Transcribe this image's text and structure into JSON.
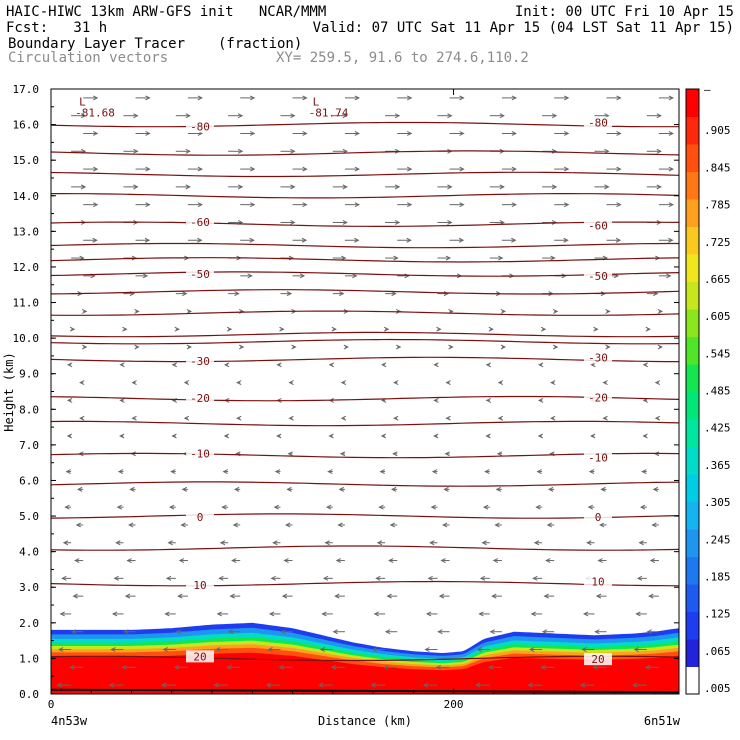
{
  "header": {
    "title": "HAIC-HIWC 13km ARW-GFS init   NCAR/MMM",
    "init": "Init: 00 UTC Fri 10 Apr 15",
    "fcst": "Fcst:   31 h",
    "valid": "Valid: 07 UTC Sat 11 Apr 15 (04 LST Sat 11 Apr 15)",
    "field1": "Boundary Layer Tracer",
    "field1_units": "(fraction)",
    "field2": "Circulation vectors",
    "xy": "XY= 259.5, 91.6 to 274.6,110.2"
  },
  "colors": {
    "contour": "#7a1010",
    "vector": "#666666",
    "tracer_scale": [
      "#ffffff",
      "#2323dc",
      "#1e3cf0",
      "#1e5af0",
      "#1e78f0",
      "#1e96f0",
      "#14b4f0",
      "#00cce6",
      "#00dcc8",
      "#00e6a0",
      "#00e678",
      "#14e650",
      "#50e628",
      "#8ce61e",
      "#c8e61e",
      "#f0e61e",
      "#fac81e",
      "#ffa01e",
      "#ff7814",
      "#ff500f",
      "#ff280a",
      "#ff0000"
    ]
  },
  "chart_data": {
    "type": "heatmap",
    "title": "Boundary Layer Tracer (fraction)",
    "xlabel": "Distance (km)",
    "ylabel": "Height (km)",
    "xlim": [
      0,
      312
    ],
    "ylim": [
      0,
      17
    ],
    "x_tick_labels": [
      "0",
      "200"
    ],
    "x_ticks": [
      0,
      200
    ],
    "x_end_labels": [
      "4n53w",
      "6n51w"
    ],
    "y_ticks": [
      0,
      1,
      2,
      3,
      4,
      5,
      6,
      7,
      8,
      9,
      10,
      11,
      12,
      13,
      14,
      15,
      16,
      17
    ],
    "y_tick_labels": [
      "0.0",
      "1.0",
      "2.0",
      "3.0",
      "4.0",
      "5.0",
      "6.0",
      "7.0",
      "8.0",
      "9.0",
      "10.0",
      "11.0",
      "12.0",
      "13.0",
      "14.0",
      "15.0",
      "16.0",
      "17.0"
    ],
    "colorbar_labels": [
      ".005",
      ".065",
      ".125",
      ".185",
      ".245",
      ".305",
      ".365",
      ".425",
      ".485",
      ".545",
      ".605",
      ".665",
      ".725",
      ".785",
      ".845",
      ".905",
      "–"
    ],
    "tracer_top_km": {
      "x": [
        0,
        20,
        40,
        60,
        80,
        100,
        120,
        135,
        150,
        165,
        180,
        195,
        205,
        215,
        230,
        250,
        270,
        290,
        300,
        312
      ],
      "z": [
        1.8,
        1.8,
        1.8,
        1.85,
        1.95,
        2.0,
        1.85,
        1.65,
        1.45,
        1.3,
        1.2,
        1.15,
        1.2,
        1.55,
        1.75,
        1.7,
        1.65,
        1.7,
        1.75,
        1.85
      ]
    },
    "temperature_contours": [
      {
        "label": "-80",
        "z": 16.0
      },
      {
        "label": "-60",
        "z": 13.2
      },
      {
        "label": "-50",
        "z": 11.8
      },
      {
        "label": "-30",
        "z": 9.4
      },
      {
        "label": "-20",
        "z": 8.3
      },
      {
        "label": "-10",
        "z": 6.7
      },
      {
        "label": "0",
        "z": 5.0
      },
      {
        "label": "10",
        "z": 3.1
      },
      {
        "label": "20",
        "z": 1.0
      }
    ],
    "unlabeled_contour_z": [
      15.2,
      14.6,
      14.0,
      12.6,
      12.2,
      11.3,
      10.7,
      10.1,
      9.9,
      7.6,
      5.9,
      4.1
    ],
    "minima": [
      {
        "label": "L",
        "value": "-81.68",
        "x": 8,
        "z": 16.7
      },
      {
        "label": "L",
        "value": "-81.74",
        "x": 124,
        "z": 16.7
      }
    ]
  }
}
